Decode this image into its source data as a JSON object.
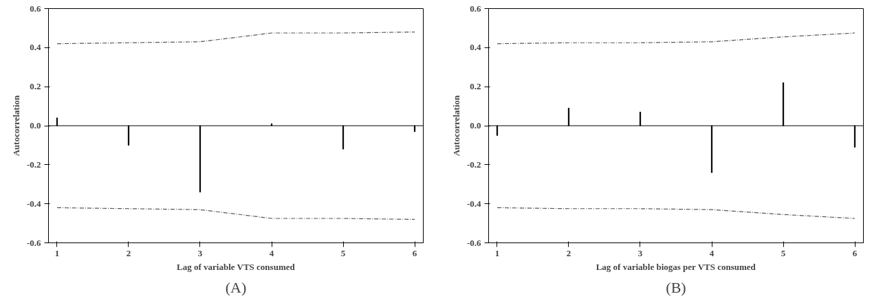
{
  "chart_data": [
    {
      "type": "bar",
      "xlabel": "Lag of variable VTS consumed",
      "ylabel": "Autocorrelation",
      "annotations": [
        "(A)"
      ],
      "x": [
        1,
        2,
        3,
        4,
        5,
        6
      ],
      "xlim": [
        0.88,
        6.12
      ],
      "xticks": [
        1,
        2,
        3,
        4,
        5,
        6
      ],
      "ylim": [
        -0.6,
        0.6
      ],
      "yticks": [
        {
          "value": -0.6,
          "label": "-0.6"
        },
        {
          "value": -0.4,
          "label": "-0.4"
        },
        {
          "value": -0.2,
          "label": "-0.2"
        },
        {
          "value": 0,
          "label": "0.0"
        },
        {
          "value": 0.2,
          "label": "0.2"
        },
        {
          "value": 0.4,
          "label": "0.4"
        },
        {
          "value": 0.6,
          "label": "0.6"
        }
      ],
      "grid": false,
      "ref_lines": [
        {
          "axis": "y",
          "value": 0,
          "color": "#000000"
        }
      ],
      "series": [
        {
          "color": "#000000",
          "values": [
            0.04,
            -0.1,
            -0.34,
            0.01,
            -0.12,
            -0.03
          ]
        },
        {
          "type": "line",
          "color": "#555555",
          "line_style": "dashed",
          "values": [
            0.42,
            0.425,
            0.43,
            0.475,
            0.475,
            0.48
          ]
        },
        {
          "type": "line",
          "color": "#555555",
          "line_style": "dashed",
          "values": [
            -0.42,
            -0.425,
            -0.43,
            -0.475,
            -0.475,
            -0.48
          ]
        }
      ]
    },
    {
      "type": "bar",
      "xlabel": "Lag of variable biogas per VTS consumed",
      "ylabel": "Autocorrelation",
      "annotations": [
        "(B)"
      ],
      "x": [
        1,
        2,
        3,
        4,
        5,
        6
      ],
      "xlim": [
        0.88,
        6.12
      ],
      "xticks": [
        1,
        2,
        3,
        4,
        5,
        6
      ],
      "ylim": [
        -0.6,
        0.6
      ],
      "yticks": [
        {
          "value": -0.6,
          "label": "-0.6"
        },
        {
          "value": -0.4,
          "label": "-0.4"
        },
        {
          "value": -0.2,
          "label": "-0.2"
        },
        {
          "value": 0,
          "label": "0.0"
        },
        {
          "value": 0.2,
          "label": "0.2"
        },
        {
          "value": 0.4,
          "label": "0.4"
        },
        {
          "value": 0.6,
          "label": "0.6"
        }
      ],
      "grid": false,
      "ref_lines": [
        {
          "axis": "y",
          "value": 0,
          "color": "#000000"
        }
      ],
      "series": [
        {
          "color": "#000000",
          "values": [
            -0.05,
            0.09,
            0.07,
            -0.24,
            0.22,
            -0.11
          ]
        },
        {
          "type": "line",
          "color": "#555555",
          "line_style": "dashed",
          "values": [
            0.42,
            0.425,
            0.425,
            0.43,
            0.455,
            0.475
          ]
        },
        {
          "type": "line",
          "color": "#555555",
          "line_style": "dashed",
          "values": [
            -0.42,
            -0.425,
            -0.425,
            -0.43,
            -0.455,
            -0.475
          ]
        }
      ]
    }
  ]
}
